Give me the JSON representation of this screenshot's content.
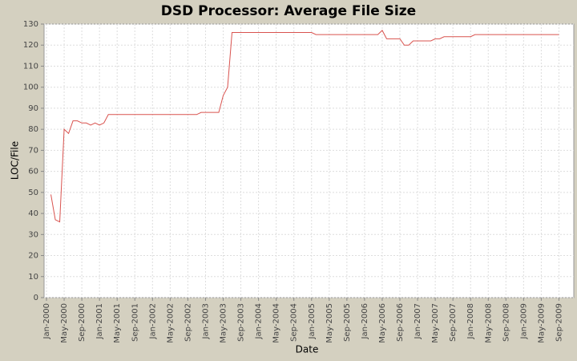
{
  "chart_data": {
    "type": "line",
    "title": "DSD Processor: Average File Size",
    "x_label": "Date",
    "y_label": "LOC/File",
    "x": [
      "2000-02",
      "2000-03",
      "2000-04",
      "2000-05",
      "2000-06",
      "2000-07",
      "2000-08",
      "2000-09",
      "2000-10",
      "2000-11",
      "2000-12",
      "2001-01",
      "2001-02",
      "2001-03",
      "2002-11",
      "2002-12",
      "2003-04",
      "2003-05",
      "2003-06",
      "2003-07",
      "2005-01",
      "2005-02",
      "2006-04",
      "2006-05",
      "2006-06",
      "2006-09",
      "2006-10",
      "2006-11",
      "2006-12",
      "2007-04",
      "2007-05",
      "2007-06",
      "2007-07",
      "2008-01",
      "2008-02",
      "2009-09"
    ],
    "values": [
      49,
      37,
      36,
      80,
      78,
      84,
      84,
      83,
      83,
      82,
      83,
      82,
      83,
      87,
      87,
      88,
      88,
      96,
      100,
      126,
      126,
      125,
      125,
      127,
      123,
      123,
      120,
      120,
      122,
      122,
      123,
      123,
      124,
      124,
      125,
      125
    ],
    "color": "#d9534f",
    "xlim": [
      "2000-01",
      "2009-12"
    ],
    "xticks": [
      {
        "value": "2000-01",
        "label": "Jan-2000"
      },
      {
        "value": "2000-05",
        "label": "May-2000"
      },
      {
        "value": "2000-09",
        "label": "Sep-2000"
      },
      {
        "value": "2001-01",
        "label": "Jan-2001"
      },
      {
        "value": "2001-05",
        "label": "May-2001"
      },
      {
        "value": "2001-09",
        "label": "Sep-2001"
      },
      {
        "value": "2002-01",
        "label": "Jan-2002"
      },
      {
        "value": "2002-05",
        "label": "May-2002"
      },
      {
        "value": "2002-09",
        "label": "Sep-2002"
      },
      {
        "value": "2003-01",
        "label": "Jan-2003"
      },
      {
        "value": "2003-05",
        "label": "May-2003"
      },
      {
        "value": "2003-09",
        "label": "Sep-2003"
      },
      {
        "value": "2004-01",
        "label": "Jan-2004"
      },
      {
        "value": "2004-05",
        "label": "May-2004"
      },
      {
        "value": "2004-09",
        "label": "Sep-2004"
      },
      {
        "value": "2005-01",
        "label": "Jan-2005"
      },
      {
        "value": "2005-05",
        "label": "May-2005"
      },
      {
        "value": "2005-09",
        "label": "Sep-2005"
      },
      {
        "value": "2006-01",
        "label": "Jan-2006"
      },
      {
        "value": "2006-05",
        "label": "May-2006"
      },
      {
        "value": "2006-09",
        "label": "Sep-2006"
      },
      {
        "value": "2007-01",
        "label": "Jan-2007"
      },
      {
        "value": "2007-05",
        "label": "May-2007"
      },
      {
        "value": "2007-09",
        "label": "Sep-2007"
      },
      {
        "value": "2008-01",
        "label": "Jan-2008"
      },
      {
        "value": "2008-05",
        "label": "May-2008"
      },
      {
        "value": "2008-09",
        "label": "Sep-2008"
      },
      {
        "value": "2009-01",
        "label": "Jan-2009"
      },
      {
        "value": "2009-05",
        "label": "May-2009"
      },
      {
        "value": "2009-09",
        "label": "Sep-2009"
      }
    ],
    "ylim": [
      0,
      130
    ],
    "yticks": [
      0,
      10,
      20,
      30,
      40,
      50,
      60,
      70,
      80,
      90,
      100,
      110,
      120,
      130
    ],
    "grid": true
  }
}
